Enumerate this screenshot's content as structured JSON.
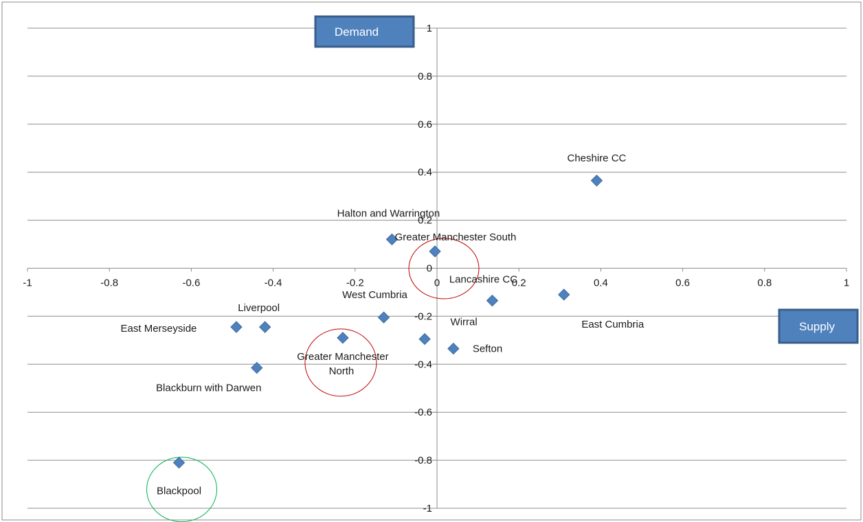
{
  "chart_data": {
    "type": "scatter",
    "title": "",
    "xlabel": "Supply",
    "ylabel": "Demand",
    "xlim": [
      -1,
      1
    ],
    "ylim": [
      -1,
      1
    ],
    "x_ticks": [
      "-1",
      "-0.8",
      "-0.6",
      "-0.4",
      "-0.2",
      "0",
      "0.2",
      "0.4",
      "0.6",
      "0.8",
      "1"
    ],
    "y_ticks": [
      "1",
      "0.8",
      "0.6",
      "0.4",
      "0.2",
      "0",
      "-0.2",
      "-0.4",
      "-0.6",
      "-0.8",
      "-1"
    ],
    "grid": "horizontal",
    "marker_color": "#4f81bd",
    "points": [
      {
        "label": "Cheshire CC",
        "x": 0.39,
        "y": 0.365
      },
      {
        "label": "Halton and Warrington",
        "x": -0.11,
        "y": 0.12
      },
      {
        "label": "Greater Manchester South",
        "x": -0.005,
        "y": 0.07
      },
      {
        "label": "Lancashire CC",
        "x": 0.135,
        "y": -0.135
      },
      {
        "label": "East Cumbria",
        "x": 0.31,
        "y": -0.11
      },
      {
        "label": "West Cumbria",
        "x": -0.13,
        "y": -0.205
      },
      {
        "label": "Wirral",
        "x": -0.03,
        "y": -0.295
      },
      {
        "label": "Sefton",
        "x": 0.04,
        "y": -0.335
      },
      {
        "label": "Liverpool",
        "x": -0.42,
        "y": -0.245
      },
      {
        "label": "East Merseyside",
        "x": -0.49,
        "y": -0.245
      },
      {
        "label": "Greater Manchester North",
        "x": -0.23,
        "y": -0.29
      },
      {
        "label": "Blackburn with Darwen",
        "x": -0.44,
        "y": -0.415
      },
      {
        "label": "Blackpool",
        "x": -0.63,
        "y": -0.81
      }
    ],
    "highlights": [
      {
        "around": "Greater Manchester South",
        "color": "#c00000"
      },
      {
        "around": "Greater Manchester North",
        "color": "#c00000"
      },
      {
        "around": "Blackpool",
        "color": "#00b050"
      }
    ]
  },
  "axis_boxes": {
    "demand": "Demand",
    "supply": "Supply",
    "fill": "#4f81bd",
    "border": "#385d8a"
  }
}
